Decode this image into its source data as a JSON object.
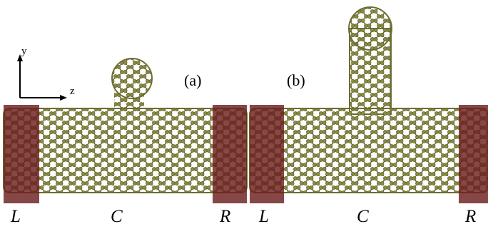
{
  "axes": {
    "y": "y",
    "z": "z"
  },
  "panels": [
    {
      "label": "(a)",
      "regions": [
        "L",
        "C",
        "R"
      ]
    },
    {
      "label": "(b)",
      "regions": [
        "L",
        "C",
        "R"
      ]
    }
  ]
}
